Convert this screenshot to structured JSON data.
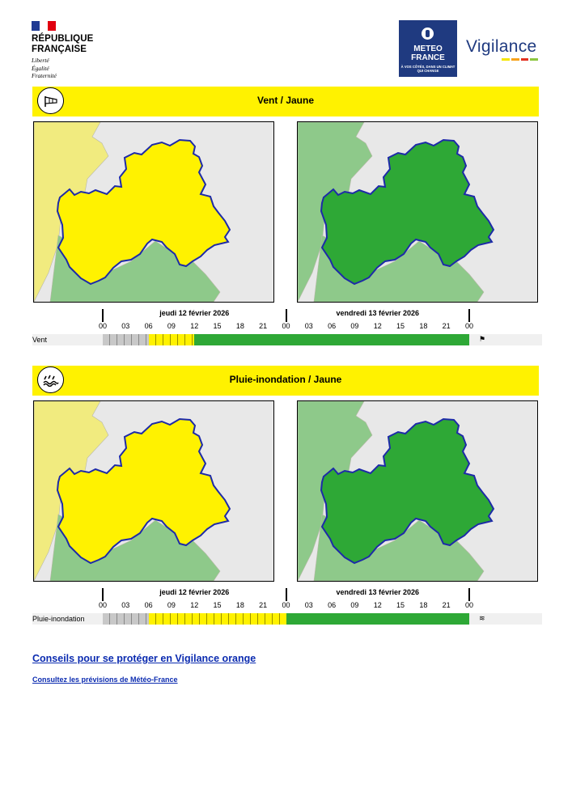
{
  "header": {
    "republic": [
      "RÉPUBLIQUE",
      "FRANÇAISE"
    ],
    "motto": [
      "Liberté",
      "Égalité",
      "Fraternité"
    ],
    "mf_name": [
      "METEO",
      "FRANCE"
    ],
    "mf_tagline": "À VOS CÔTÉS, DANS UN CLIMAT QUI CHANGE",
    "vigilance": "Vigilance",
    "vigilance_colors": [
      "#f5e500",
      "#f7a21b",
      "#e2301f",
      "#8cc63f"
    ]
  },
  "sections": [
    {
      "title": "Vent / Jaune",
      "icon": "wind-sock-icon",
      "map_colors": [
        "#fff200",
        "#2ea836"
      ],
      "row_label": "Vent",
      "phenomenon_segments": [
        {
          "from_hour": 0,
          "to_hour": 6,
          "level": "grey"
        },
        {
          "from_hour": 6,
          "to_hour": 12,
          "level": "yellow"
        },
        {
          "from_hour": 12,
          "to_hour": 48,
          "level": "green"
        }
      ]
    },
    {
      "title": "Pluie-inondation / Jaune",
      "icon": "rain-flood-icon",
      "map_colors": [
        "#fff200",
        "#2ea836"
      ],
      "row_label": "Pluie-inondation",
      "phenomenon_segments": [
        {
          "from_hour": 0,
          "to_hour": 6,
          "level": "grey"
        },
        {
          "from_hour": 6,
          "to_hour": 24,
          "level": "yellow"
        },
        {
          "from_hour": 24,
          "to_hour": 48,
          "level": "green"
        }
      ]
    }
  ],
  "timeline": {
    "days": [
      "jeudi 12 février 2026",
      "vendredi 13 février 2026"
    ],
    "hours": [
      "00",
      "03",
      "06",
      "09",
      "12",
      "15",
      "18",
      "21",
      "00",
      "03",
      "06",
      "09",
      "12",
      "15",
      "18",
      "21",
      "00"
    ]
  },
  "links": {
    "advice": "Conseils pour se protéger en Vigilance orange",
    "forecasts": "Consultez les prévisions de Météo-France"
  }
}
